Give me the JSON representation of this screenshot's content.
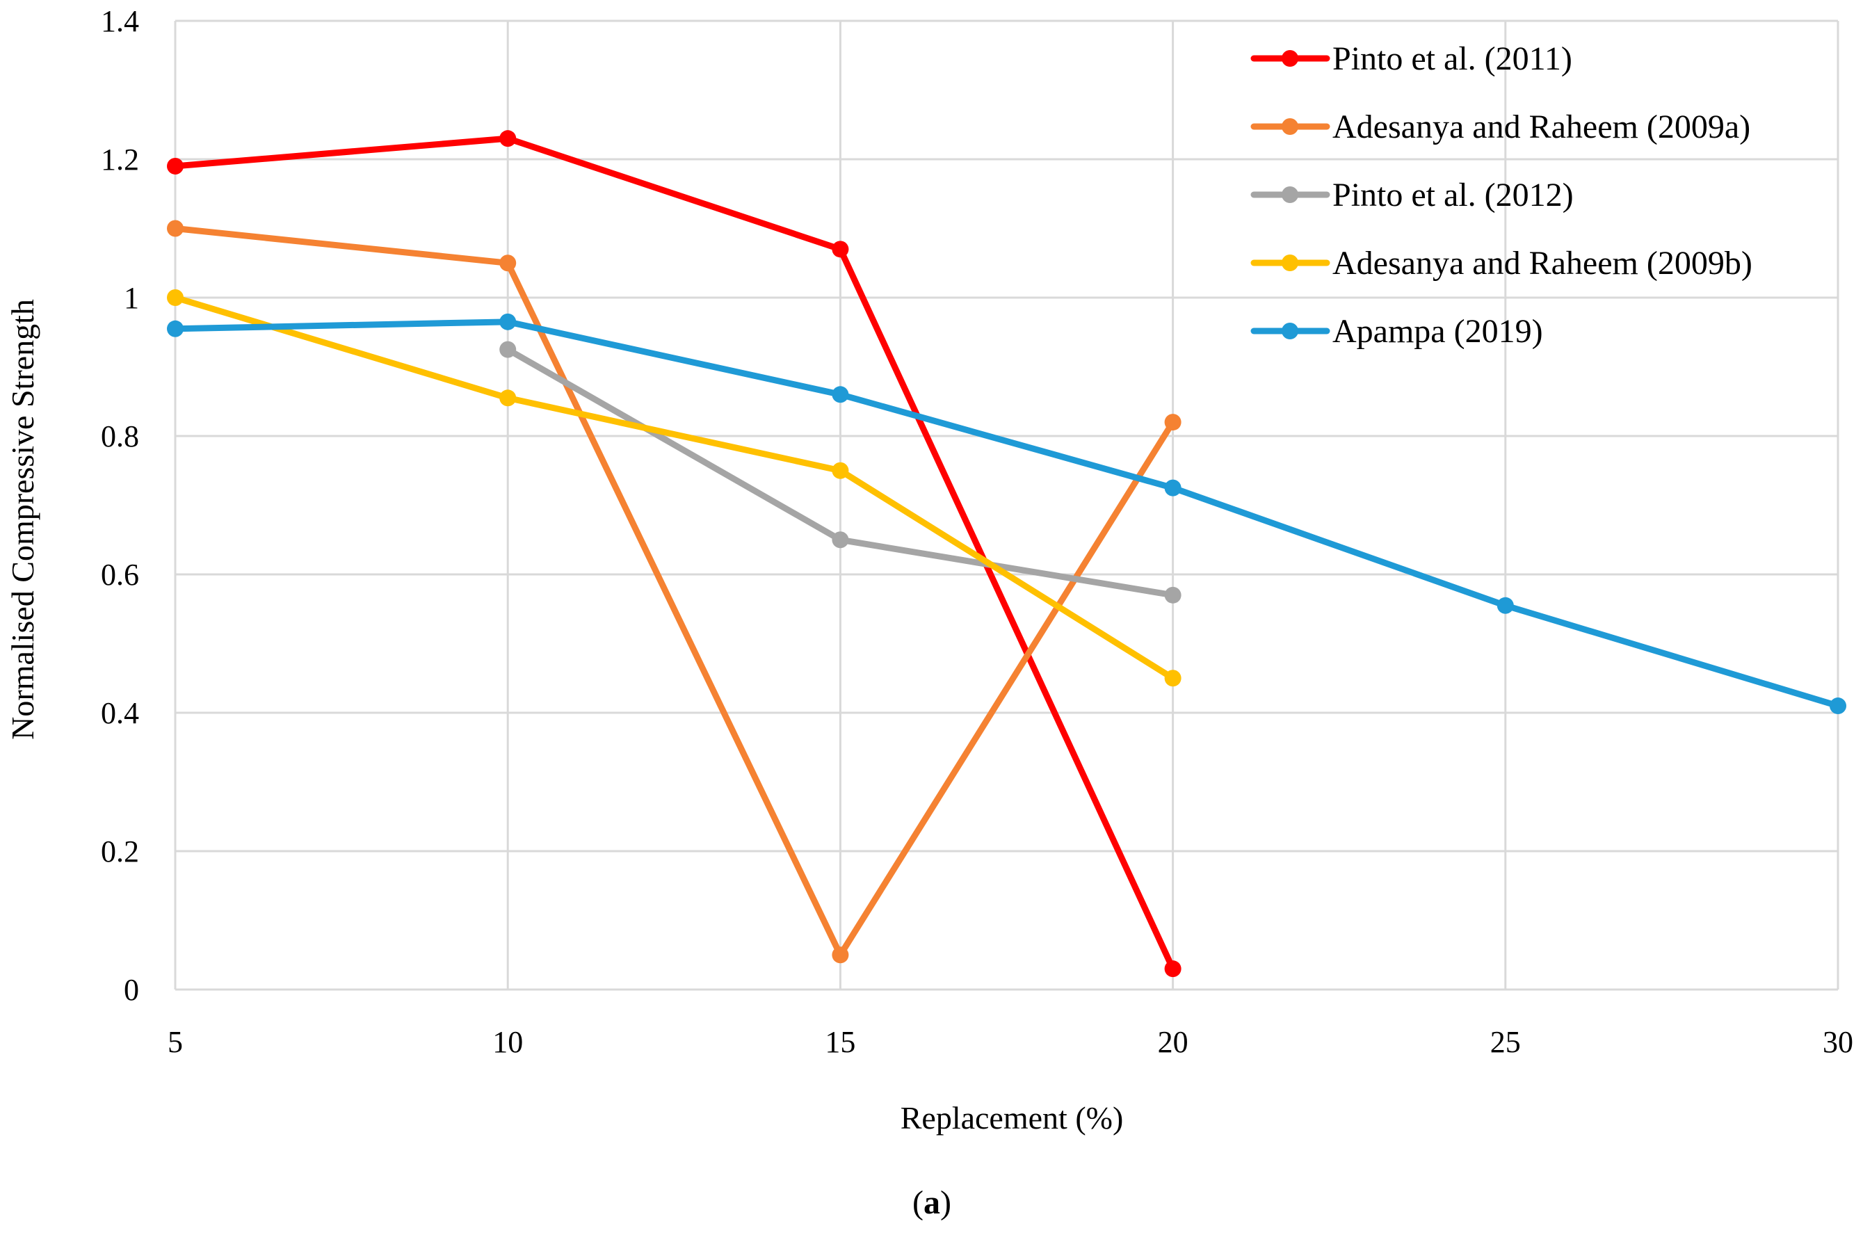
{
  "chart_data": {
    "type": "line",
    "title": "",
    "xlabel": "Replacement (%)",
    "ylabel": "Normalised Compressive Strength",
    "caption_letter": "a",
    "xlim": [
      5,
      30
    ],
    "ylim": [
      0,
      1.4
    ],
    "x_ticks": [
      5,
      10,
      15,
      20,
      25,
      30
    ],
    "y_ticks": [
      0,
      0.2,
      0.4,
      0.6,
      0.8,
      1,
      1.2,
      1.4
    ],
    "x_tick_labels": [
      "5",
      "10",
      "15",
      "20",
      "25",
      "30"
    ],
    "y_tick_labels": [
      "0",
      "0.2",
      "0.4",
      "0.6",
      "0.8",
      "1",
      "1.2",
      "1.4"
    ],
    "grid": true,
    "legend_position": "top-right",
    "series": [
      {
        "name": "Pinto et al. (2011)",
        "color": "#ff0000",
        "x": [
          5,
          10,
          15,
          20
        ],
        "values": [
          1.19,
          1.23,
          1.07,
          0.03
        ]
      },
      {
        "name": "Adesanya and Raheem (2009a)",
        "color": "#f58232",
        "x": [
          5,
          10,
          15,
          20
        ],
        "values": [
          1.1,
          1.05,
          0.05,
          0.82
        ]
      },
      {
        "name": "Pinto et al. (2012)",
        "color": "#a5a5a5",
        "x": [
          10,
          15,
          20
        ],
        "values": [
          0.925,
          0.65,
          0.57
        ]
      },
      {
        "name": "Adesanya and Raheem (2009b)",
        "color": "#ffc000",
        "x": [
          5,
          10,
          15,
          20
        ],
        "values": [
          1.0,
          0.855,
          0.75,
          0.45
        ]
      },
      {
        "name": "Apampa (2019)",
        "color": "#1f9ad6",
        "x": [
          5,
          10,
          15,
          20,
          25,
          30
        ],
        "values": [
          0.955,
          0.965,
          0.86,
          0.725,
          0.555,
          0.41
        ]
      }
    ]
  }
}
